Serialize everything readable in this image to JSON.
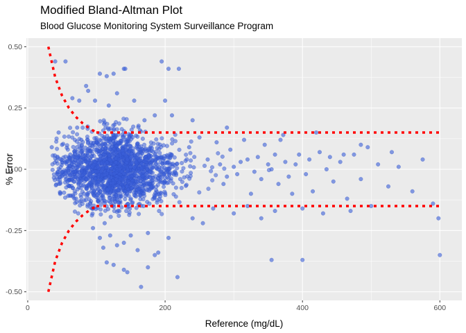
{
  "chart_data": {
    "type": "scatter",
    "title": "Modified Bland-Altman Plot",
    "subtitle": "Blood Glucose Monitoring System Surveillance Program",
    "xlabel": "Reference (mg/dL)",
    "ylabel": "% Error",
    "xlim": [
      -2,
      632
    ],
    "ylim": [
      -0.535,
      0.535
    ],
    "x_ticks": [
      0,
      200,
      400,
      600
    ],
    "x_tick_labels": [
      "0",
      "200",
      "400",
      "600"
    ],
    "y_ticks": [
      -0.5,
      -0.25,
      0,
      0.25,
      0.5
    ],
    "y_tick_labels": [
      "-0.50",
      "-0.25",
      "0.00",
      "0.25",
      "0.50"
    ],
    "grid": true,
    "point_color": "#3b5fd9",
    "line_color": "#ff0000",
    "boundary_lines": [
      {
        "x": [
          30,
          40,
          50,
          60,
          70,
          80,
          90,
          100
        ],
        "y": [
          0.5,
          0.375,
          0.3,
          0.25,
          0.214,
          0.1875,
          0.167,
          0.15
        ]
      },
      {
        "x": [
          100,
          600
        ],
        "y": [
          0.15,
          0.15
        ]
      },
      {
        "x": [
          30,
          40,
          50,
          60,
          70,
          80,
          90,
          100
        ],
        "y": [
          -0.5,
          -0.375,
          -0.3,
          -0.25,
          -0.214,
          -0.1875,
          -0.167,
          -0.15
        ]
      },
      {
        "x": [
          100,
          600
        ],
        "y": [
          -0.15,
          -0.15
        ]
      }
    ],
    "points": [
      [
        40,
        0.44
      ],
      [
        55,
        0.44
      ],
      [
        85,
        0.34
      ],
      [
        88,
        0.32
      ],
      [
        105,
        0.39
      ],
      [
        115,
        0.38
      ],
      [
        125,
        0.39
      ],
      [
        140,
        0.41
      ],
      [
        142,
        0.41
      ],
      [
        195,
        0.44
      ],
      [
        205,
        0.41
      ],
      [
        220,
        0.41
      ],
      [
        65,
        0.29
      ],
      [
        75,
        0.28
      ],
      [
        98,
        0.28
      ],
      [
        118,
        0.26
      ],
      [
        155,
        0.28
      ],
      [
        200,
        0.28
      ],
      [
        130,
        0.31
      ],
      [
        170,
        0.2
      ],
      [
        185,
        0.22
      ],
      [
        210,
        0.22
      ],
      [
        240,
        0.2
      ],
      [
        290,
        0.17
      ],
      [
        35,
        0.09
      ],
      [
        45,
        0.15
      ],
      [
        50,
        0.1
      ],
      [
        58,
        -0.05
      ],
      [
        62,
        0.06
      ],
      [
        68,
        -0.12
      ],
      [
        72,
        0.17
      ],
      [
        78,
        0.12
      ],
      [
        82,
        -0.1
      ],
      [
        85,
        -0.04
      ],
      [
        235,
        0.09
      ],
      [
        250,
        0.13
      ],
      [
        262,
        0.04
      ],
      [
        275,
        0.11
      ],
      [
        285,
        -0.06
      ],
      [
        295,
        0.08
      ],
      [
        305,
        -0.02
      ],
      [
        315,
        0.12
      ],
      [
        325,
        -0.1
      ],
      [
        335,
        0.05
      ],
      [
        345,
        0.1
      ],
      [
        355,
        0.0
      ],
      [
        365,
        -0.06
      ],
      [
        375,
        0.03
      ],
      [
        385,
        -0.1
      ],
      [
        395,
        0.06
      ],
      [
        405,
        -0.02
      ],
      [
        415,
        -0.09
      ],
      [
        425,
        0.07
      ],
      [
        435,
        0.0
      ],
      [
        445,
        -0.05
      ],
      [
        455,
        0.03
      ],
      [
        465,
        -0.12
      ],
      [
        475,
        0.06
      ],
      [
        485,
        -0.04
      ],
      [
        495,
        0.09
      ],
      [
        510,
        0.02
      ],
      [
        525,
        -0.07
      ],
      [
        540,
        0.01
      ],
      [
        560,
        -0.09
      ],
      [
        575,
        0.04
      ],
      [
        590,
        -0.14
      ],
      [
        598,
        -0.2
      ],
      [
        600,
        -0.35
      ],
      [
        372,
        0.14
      ],
      [
        368,
        0.12
      ],
      [
        460,
        0.06
      ],
      [
        530,
        0.07
      ],
      [
        485,
        0.1
      ],
      [
        420,
        0.15
      ],
      [
        440,
        0.05
      ],
      [
        240,
        -0.2
      ],
      [
        255,
        -0.22
      ],
      [
        270,
        -0.16
      ],
      [
        300,
        -0.18
      ],
      [
        320,
        -0.15
      ],
      [
        340,
        -0.2
      ],
      [
        360,
        -0.17
      ],
      [
        400,
        -0.16
      ],
      [
        430,
        -0.18
      ],
      [
        470,
        -0.17
      ],
      [
        500,
        -0.15
      ],
      [
        95,
        -0.24
      ],
      [
        105,
        -0.28
      ],
      [
        112,
        -0.22
      ],
      [
        120,
        -0.27
      ],
      [
        130,
        -0.31
      ],
      [
        140,
        -0.3
      ],
      [
        150,
        -0.27
      ],
      [
        160,
        -0.33
      ],
      [
        175,
        -0.26
      ],
      [
        190,
        -0.34
      ],
      [
        205,
        -0.28
      ],
      [
        115,
        -0.38
      ],
      [
        125,
        -0.39
      ],
      [
        140,
        -0.41
      ],
      [
        145,
        -0.42
      ],
      [
        165,
        -0.48
      ],
      [
        175,
        -0.4
      ],
      [
        185,
        -0.35
      ],
      [
        218,
        -0.44
      ],
      [
        355,
        -0.37
      ],
      [
        400,
        -0.37
      ],
      [
        110,
        -0.32
      ],
      [
        300,
        0.01
      ],
      [
        310,
        0.03
      ],
      [
        330,
        -0.01
      ],
      [
        350,
        0.02
      ],
      [
        320,
        0.04
      ],
      [
        280,
        0.02
      ],
      [
        290,
        -0.03
      ],
      [
        340,
        -0.04
      ],
      [
        360,
        0.06
      ],
      [
        380,
        -0.03
      ],
      [
        390,
        0.02
      ],
      [
        410,
        0.04
      ]
    ],
    "cloud": {
      "x_center": 128,
      "x_sd": 42,
      "y_sd": 0.075,
      "count": 1900,
      "seed": 7
    }
  }
}
